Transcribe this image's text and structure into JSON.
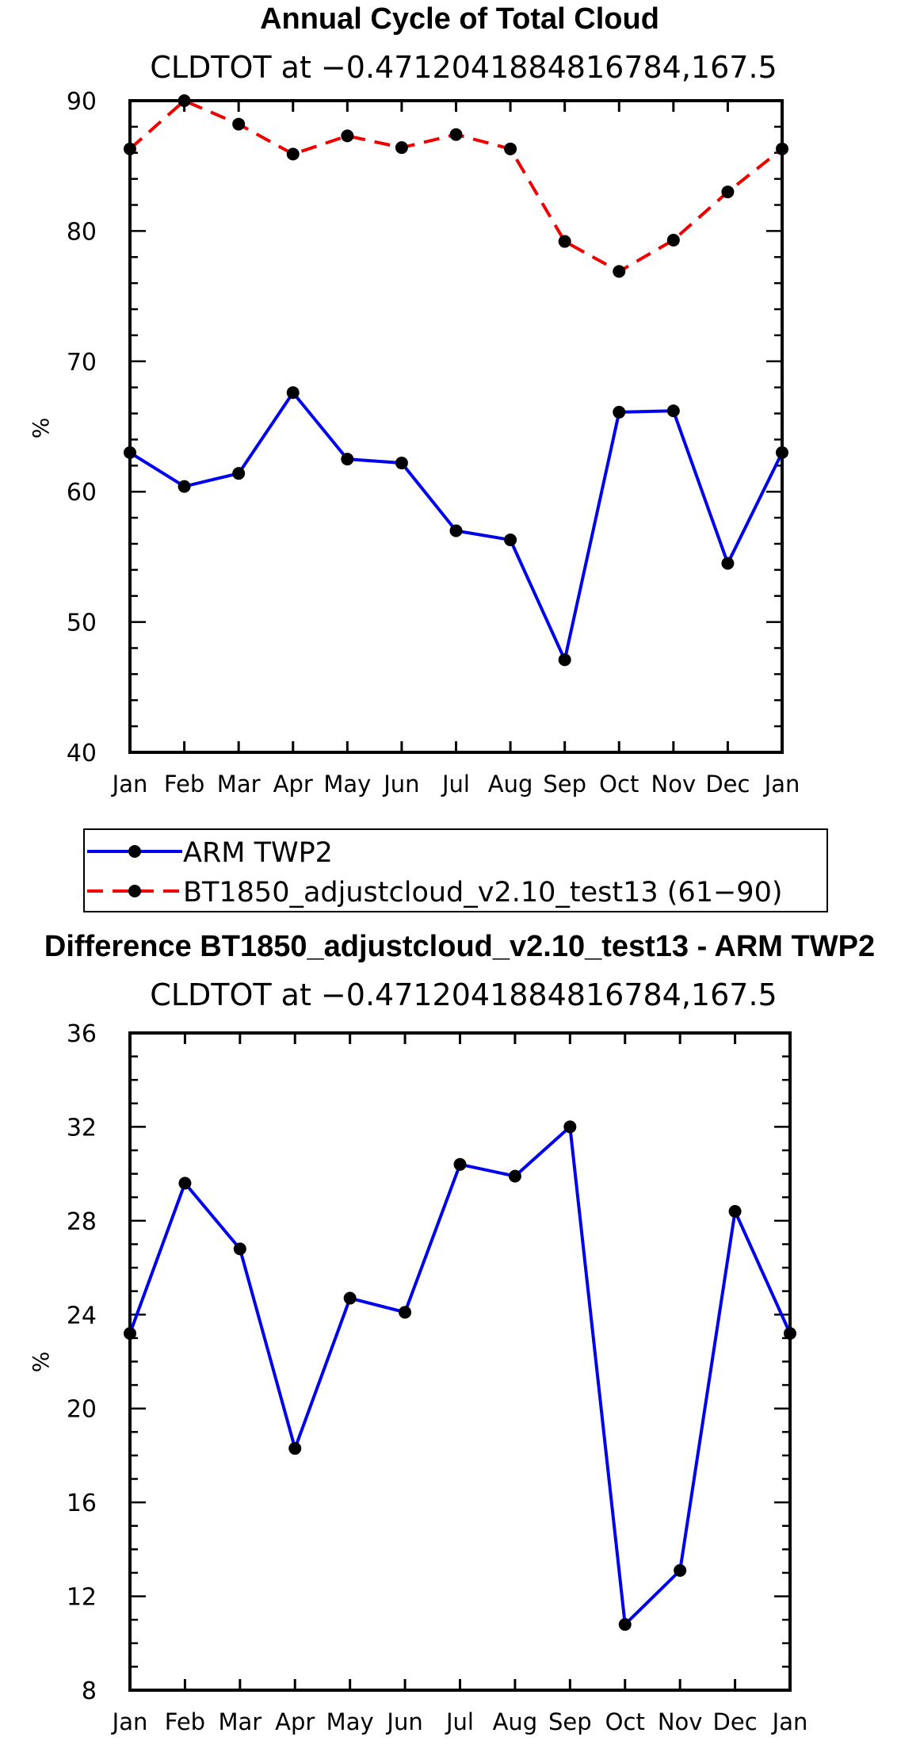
{
  "chart_data": [
    {
      "type": "line",
      "title": "Annual Cycle of Total Cloud",
      "subtitle": "CLDTOT at −0.4712041884816784,167.5",
      "xlabel": "",
      "ylabel": "%",
      "categories": [
        "Jan",
        "Feb",
        "Mar",
        "Apr",
        "May",
        "Jun",
        "Jul",
        "Aug",
        "Sep",
        "Oct",
        "Nov",
        "Dec",
        "Jan"
      ],
      "ylim": [
        40,
        90
      ],
      "yticks": [
        "40",
        "50",
        "60",
        "70",
        "80",
        "90"
      ],
      "series": [
        {
          "name": "ARM TWP2",
          "color": "#0000ee",
          "dashed": false,
          "values": [
            63.0,
            60.4,
            61.4,
            67.6,
            62.5,
            62.2,
            57.0,
            56.3,
            47.1,
            66.1,
            66.2,
            54.5,
            63.0
          ]
        },
        {
          "name": "BT1850_adjustcloud_v2.10_test13 (61−90)",
          "color": "#ee0000",
          "dashed": true,
          "values": [
            86.3,
            90.0,
            88.2,
            85.9,
            87.3,
            86.4,
            87.4,
            86.3,
            79.2,
            76.9,
            79.3,
            83.0,
            86.3
          ]
        }
      ]
    },
    {
      "type": "line",
      "title": "Difference BT1850_adjustcloud_v2.10_test13 - ARM TWP2",
      "subtitle": "CLDTOT at −0.4712041884816784,167.5",
      "xlabel": "",
      "ylabel": "%",
      "categories": [
        "Jan",
        "Feb",
        "Mar",
        "Apr",
        "May",
        "Jun",
        "Jul",
        "Aug",
        "Sep",
        "Oct",
        "Nov",
        "Dec",
        "Jan"
      ],
      "ylim": [
        8,
        36
      ],
      "yticks": [
        "8",
        "12",
        "16",
        "20",
        "24",
        "28",
        "32",
        "36"
      ],
      "series": [
        {
          "name": "Difference",
          "color": "#0000ee",
          "dashed": false,
          "values": [
            23.2,
            29.6,
            26.8,
            18.3,
            24.7,
            24.1,
            30.4,
            29.9,
            32.0,
            10.8,
            13.1,
            28.4,
            23.2
          ]
        }
      ]
    }
  ]
}
